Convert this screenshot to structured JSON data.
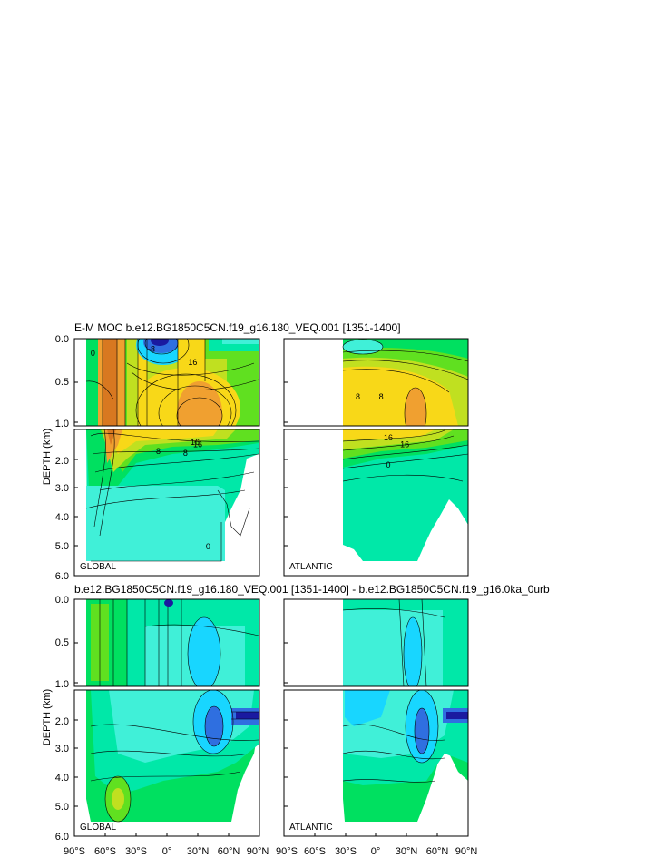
{
  "figure": {
    "title_top": "E-M MOC  b.e12.BG1850C5CN.f19_g16.180_VEQ.001 [1351-1400]",
    "title_bottom": "b.e12.BG1850C5CN.f19_g16.180_VEQ.001 [1351-1400] - b.e12.BG1850C5CN.f19_g16.0ka_0urb",
    "ylabel": "DEPTH (km)",
    "panel_global": "GLOBAL",
    "panel_atlantic": "ATLANTIC",
    "y_ticks_upper": [
      "0.0",
      "0.5",
      "1.0"
    ],
    "y_ticks_lower": [
      "2.0",
      "3.0",
      "4.0",
      "5.0",
      "6.0"
    ],
    "x_ticks": [
      "90°S",
      "60°S",
      "30°S",
      "0°",
      "30°N",
      "60°N",
      "90°N"
    ],
    "x_ticks_atl": [
      "90°S",
      "60°S",
      "30°S",
      "0°",
      "30°N",
      "60°N",
      "90°N"
    ]
  },
  "chart_data": [
    {
      "type": "heatmap",
      "title": "E-M MOC  b.e12.BG1850C5CN.f19_g16.180_VEQ.001 [1351-1400]",
      "panel": "GLOBAL",
      "xlabel": "",
      "ylabel": "DEPTH (km)",
      "xlim": [
        -90,
        90
      ],
      "ylim": [
        6.0,
        0.0
      ],
      "contour_labels": [
        {
          "x": -72,
          "y": 0.2,
          "v": "0"
        },
        {
          "x": -15,
          "y": 0.15,
          "v": "-8"
        },
        {
          "x": 25,
          "y": 0.3,
          "v": "16"
        },
        {
          "x": 30,
          "y": 1.6,
          "v": "16"
        },
        {
          "x": 18,
          "y": 1.9,
          "v": "8"
        },
        {
          "x": 40,
          "y": 5.1,
          "v": "0"
        }
      ]
    },
    {
      "type": "heatmap",
      "panel": "ATLANTIC",
      "xlim": [
        -90,
        90
      ],
      "ylim": [
        6.0,
        0.0
      ],
      "contour_labels": [
        {
          "x": 5,
          "y": 0.7,
          "v": "8"
        },
        {
          "x": 28,
          "y": 1.6,
          "v": "16"
        },
        {
          "x": 12,
          "y": 2.3,
          "v": "0"
        }
      ]
    },
    {
      "type": "heatmap",
      "title": "b.e12.BG1850C5CN.f19_g16.180_VEQ.001 [1351-1400] - b.e12.BG1850C5CN.f19_g16.0ka_0urb",
      "panel": "GLOBAL",
      "xlim": [
        -90,
        90
      ],
      "ylim": [
        6.0,
        0.0
      ]
    },
    {
      "type": "heatmap",
      "panel": "ATLANTIC",
      "xlim": [
        -90,
        90
      ],
      "ylim": [
        6.0,
        0.0
      ]
    }
  ],
  "colors": {
    "deep_blue": "#1a1aa0",
    "blue": "#2f6fe0",
    "cyan": "#18d6ff",
    "aqua": "#40f0d8",
    "mint": "#00e8a8",
    "green": "#00e060",
    "lime": "#60e020",
    "yellowgreen": "#c0e020",
    "yellow": "#f8d818",
    "orange": "#f0a030",
    "darkorange": "#d87820"
  }
}
